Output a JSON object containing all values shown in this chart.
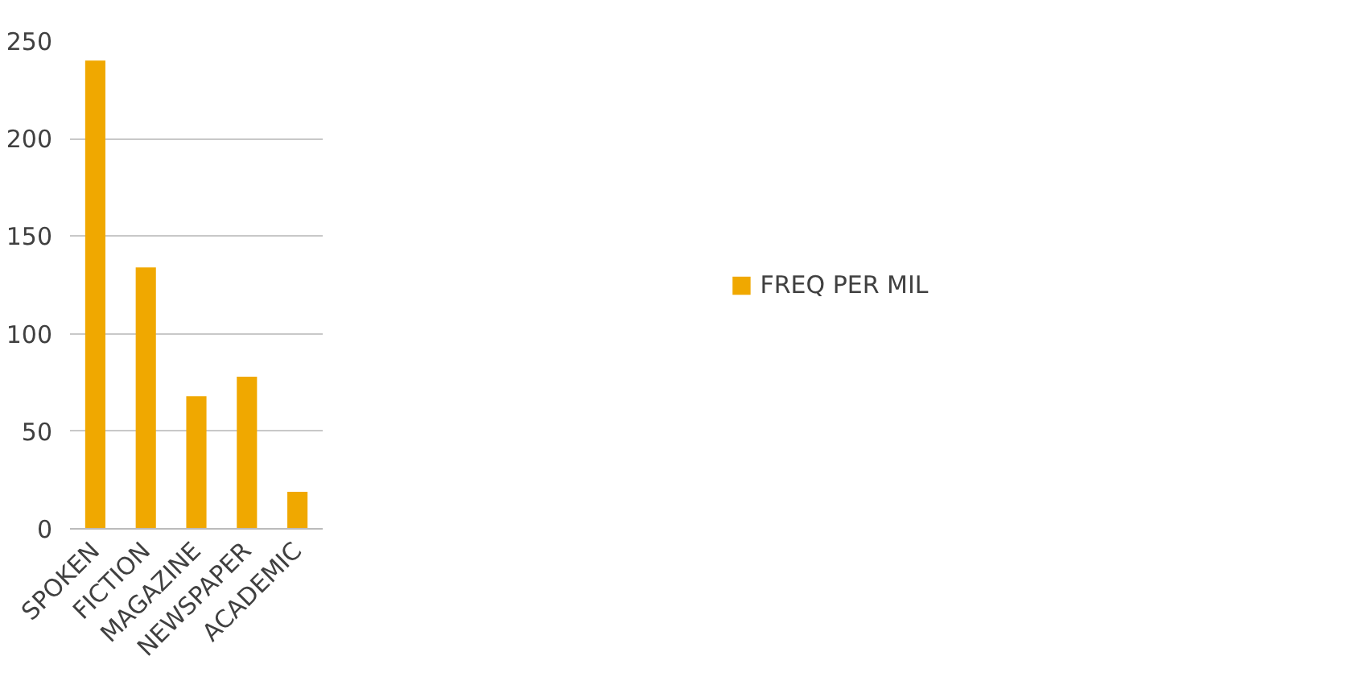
{
  "chart_data": {
    "type": "bar",
    "categories": [
      "SPOKEN",
      "FICTION",
      "MAGAZINE",
      "NEWSPAPER",
      "ACADEMIC"
    ],
    "series": [
      {
        "name": "FREQ PER MIL",
        "color": "#f0a800",
        "values": [
          240,
          134,
          68,
          78,
          19
        ]
      }
    ],
    "ylim": [
      0,
      250
    ],
    "yticks": [
      0,
      50,
      100,
      150,
      200,
      250
    ],
    "grid": "y",
    "legend": "right"
  }
}
